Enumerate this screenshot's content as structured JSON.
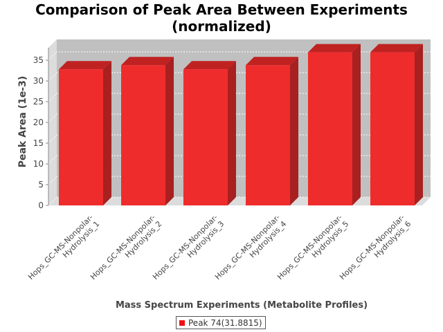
{
  "chart_data": {
    "type": "bar",
    "title_line1": "Comparison of Peak Area Between Experiments",
    "title_line2": "(normalized)",
    "xlabel": "Mass Spectrum Experiments (Metabolite Profiles)",
    "ylabel": "Peak Area (1e-3)",
    "categories": [
      [
        "Hops_GC-MS-Nonpolar-",
        "Hydrolysis_1"
      ],
      [
        "Hops_GC-MS-Nonpolar-",
        "Hydrolysis_2"
      ],
      [
        "Hops_GC-MS-Nonpolar-",
        "Hydrolysis_3"
      ],
      [
        "Hops_GC-MS-Nonpolar-",
        "Hydrolysis_4"
      ],
      [
        "Hops_GC-MS-Nonpolar-",
        "Hydrolysis_5"
      ],
      [
        "Hops_GC-MS-Nonpolar-",
        "Hydrolysis_6"
      ]
    ],
    "series": [
      {
        "name": "Peak 74(31.8815)",
        "values": [
          32.8,
          33.8,
          32.8,
          33.8,
          36.9,
          36.9
        ],
        "color": "#ee1111"
      }
    ],
    "ylim": [
      0,
      38
    ],
    "yticks": [
      0,
      5,
      10,
      15,
      20,
      25,
      30,
      35
    ],
    "grid": true,
    "legend_position": "bottom",
    "style": "3d-bar",
    "colors": {
      "bar_front": "#ef2c2c",
      "bar_side": "#a82020",
      "bar_top": "#c02222",
      "plot_back": "#c0c0c0",
      "plot_side": "#dcdcdc"
    }
  }
}
